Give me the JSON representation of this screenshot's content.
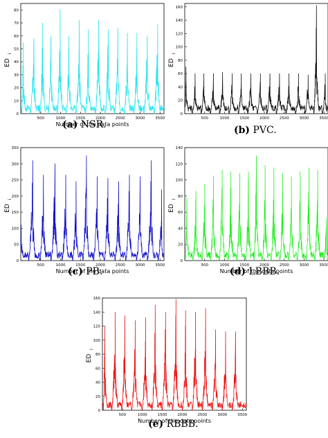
{
  "chart_data": [
    {
      "type": "line",
      "panel": "a",
      "caption": {
        "label": "(a)",
        "text": "NSR."
      },
      "xlabel": "Number of the data points",
      "ylabel": "ED",
      "ylabel_sub": "i",
      "color": "#22e5ee",
      "xlim": [
        0,
        3600
      ],
      "ylim": [
        0,
        85
      ],
      "xticks": [
        500,
        1000,
        1500,
        2000,
        2500,
        3000,
        3500
      ],
      "yticks": [
        0,
        10,
        20,
        30,
        40,
        50,
        60,
        70,
        80
      ],
      "beats": [
        {
          "x": 60,
          "h": 55
        },
        {
          "x": 330,
          "h": 58
        },
        {
          "x": 550,
          "h": 70
        },
        {
          "x": 760,
          "h": 60
        },
        {
          "x": 990,
          "h": 80
        },
        {
          "x": 1210,
          "h": 60
        },
        {
          "x": 1470,
          "h": 72
        },
        {
          "x": 1700,
          "h": 65
        },
        {
          "x": 1960,
          "h": 72
        },
        {
          "x": 2200,
          "h": 65
        },
        {
          "x": 2440,
          "h": 66
        },
        {
          "x": 2680,
          "h": 62
        },
        {
          "x": 2920,
          "h": 62
        },
        {
          "x": 3180,
          "h": 60
        },
        {
          "x": 3440,
          "h": 69
        }
      ]
    },
    {
      "type": "line",
      "panel": "b",
      "caption": {
        "label": "(b)",
        "text": "PVC."
      },
      "xlabel": "",
      "ylabel": "ED",
      "ylabel_sub": "i",
      "color": "#111111",
      "xlim": [
        0,
        3600
      ],
      "ylim": [
        0,
        165
      ],
      "xticks": [
        500,
        1000,
        1500,
        2000,
        2500,
        3000,
        3500
      ],
      "yticks": [
        0,
        20,
        40,
        60,
        80,
        100,
        120,
        140,
        160
      ],
      "beats": [
        {
          "x": 30,
          "h": 70
        },
        {
          "x": 260,
          "h": 60
        },
        {
          "x": 480,
          "h": 60
        },
        {
          "x": 720,
          "h": 60
        },
        {
          "x": 950,
          "h": 62
        },
        {
          "x": 1190,
          "h": 60
        },
        {
          "x": 1420,
          "h": 60
        },
        {
          "x": 1660,
          "h": 60
        },
        {
          "x": 1900,
          "h": 60
        },
        {
          "x": 2140,
          "h": 60
        },
        {
          "x": 2380,
          "h": 60
        },
        {
          "x": 2620,
          "h": 60
        },
        {
          "x": 2860,
          "h": 60
        },
        {
          "x": 3100,
          "h": 58
        },
        {
          "x": 3310,
          "h": 162
        },
        {
          "x": 3530,
          "h": 60
        }
      ]
    },
    {
      "type": "line",
      "panel": "c",
      "caption": {
        "label": "(c)",
        "text": "PB."
      },
      "xlabel": "Number of the data points",
      "ylabel": "ED",
      "ylabel_sub": "i",
      "color": "#1010cc",
      "xlim": [
        0,
        3600
      ],
      "ylim": [
        0,
        350
      ],
      "xticks": [
        500,
        1000,
        1500,
        2000,
        2500,
        3000,
        3500
      ],
      "yticks": [
        0,
        50,
        100,
        150,
        200,
        250,
        300,
        350
      ],
      "beats": [
        {
          "x": 10,
          "h": 110
        },
        {
          "x": 300,
          "h": 310
        },
        {
          "x": 570,
          "h": 265
        },
        {
          "x": 860,
          "h": 300
        },
        {
          "x": 1130,
          "h": 265
        },
        {
          "x": 1390,
          "h": 245
        },
        {
          "x": 1650,
          "h": 325
        },
        {
          "x": 1920,
          "h": 260
        },
        {
          "x": 2190,
          "h": 255
        },
        {
          "x": 2460,
          "h": 245
        },
        {
          "x": 2730,
          "h": 265
        },
        {
          "x": 3000,
          "h": 260
        },
        {
          "x": 3280,
          "h": 310
        },
        {
          "x": 3540,
          "h": 220
        }
      ]
    },
    {
      "type": "line",
      "panel": "d",
      "caption": {
        "label": "(d)",
        "text": "LBBB."
      },
      "xlabel": "Number of the data points",
      "ylabel": "ED",
      "ylabel_sub": "i",
      "color": "#22ee22",
      "xlim": [
        0,
        3600
      ],
      "ylim": [
        0,
        140
      ],
      "xticks": [
        500,
        1000,
        1500,
        2000,
        2500,
        3000,
        3500
      ],
      "yticks": [
        0,
        20,
        40,
        60,
        80,
        100,
        120,
        140
      ],
      "beats": [
        {
          "x": 50,
          "h": 78
        },
        {
          "x": 280,
          "h": 86
        },
        {
          "x": 500,
          "h": 95
        },
        {
          "x": 720,
          "h": 105
        },
        {
          "x": 940,
          "h": 112
        },
        {
          "x": 1160,
          "h": 110
        },
        {
          "x": 1380,
          "h": 108
        },
        {
          "x": 1600,
          "h": 110
        },
        {
          "x": 1800,
          "h": 130
        },
        {
          "x": 2020,
          "h": 118
        },
        {
          "x": 2240,
          "h": 115
        },
        {
          "x": 2460,
          "h": 108
        },
        {
          "x": 2680,
          "h": 104
        },
        {
          "x": 2900,
          "h": 110
        },
        {
          "x": 3120,
          "h": 115
        },
        {
          "x": 3340,
          "h": 112
        },
        {
          "x": 3560,
          "h": 52
        }
      ]
    },
    {
      "type": "line",
      "panel": "e",
      "caption": {
        "label": "(e)",
        "text": "RBBB."
      },
      "xlabel": "Number of the data points",
      "ylabel": "ED",
      "ylabel_sub": "i",
      "color": "#ee1111",
      "xlim": [
        0,
        3600
      ],
      "ylim": [
        0,
        160
      ],
      "xticks": [
        500,
        1000,
        1500,
        2000,
        2500,
        3000,
        3500
      ],
      "yticks": [
        0,
        20,
        40,
        60,
        80,
        100,
        120,
        140,
        160
      ],
      "beats": [
        {
          "x": 60,
          "h": 120
        },
        {
          "x": 320,
          "h": 140
        },
        {
          "x": 560,
          "h": 135
        },
        {
          "x": 820,
          "h": 128
        },
        {
          "x": 1080,
          "h": 132
        },
        {
          "x": 1320,
          "h": 150
        },
        {
          "x": 1580,
          "h": 140
        },
        {
          "x": 1840,
          "h": 158
        },
        {
          "x": 2080,
          "h": 142
        },
        {
          "x": 2330,
          "h": 140
        },
        {
          "x": 2580,
          "h": 145
        },
        {
          "x": 2830,
          "h": 115
        },
        {
          "x": 3080,
          "h": 112
        },
        {
          "x": 3330,
          "h": 112
        }
      ]
    }
  ]
}
